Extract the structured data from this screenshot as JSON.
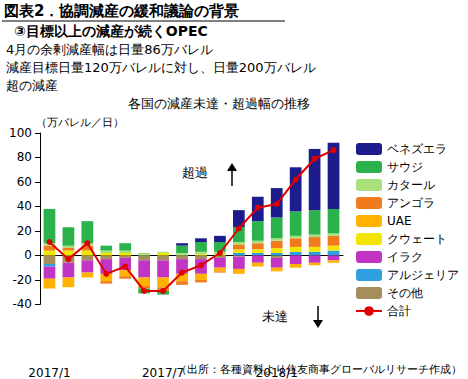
{
  "chart_data": {
    "type": "bar",
    "title": "図表2．協調減産の緩和議論の背景",
    "subtitle": "③目標以上の減産が続くOPEC",
    "description": [
      "4月の余剰減産幅は日量86万バレル",
      "減産目標日量120万バレルに対し、日量200万バレル",
      "超の減産"
    ],
    "chart_title": "各国の減産未達・超過幅の推移",
    "ylabel": "（万バレル／日）",
    "annotations": [
      {
        "text": "超過"
      },
      {
        "text": "未達"
      }
    ],
    "source": "（出所：各種資料より住友商事グローバルリサーチ作成）",
    "categories": [
      "2017/1",
      null,
      null,
      null,
      null,
      null,
      "2017/7",
      null,
      null,
      null,
      null,
      null,
      "2018/1",
      null,
      null,
      null
    ],
    "stacked": true,
    "grid": false,
    "legend": "right",
    "ylim": [
      -40,
      100
    ],
    "yticks": [
      -40,
      -20,
      0,
      20,
      40,
      60,
      80,
      100
    ],
    "series": [
      {
        "name": "ベネズエラ",
        "color": "#1c1c8c",
        "values": [
          0,
          0,
          0,
          0,
          0,
          0,
          0,
          2,
          3,
          5,
          14,
          20,
          24,
          36,
          50,
          54
        ]
      },
      {
        "name": "サウジ",
        "color": "#2bb24c",
        "values": [
          28,
          15,
          18,
          4,
          6,
          -4,
          -3,
          6,
          8,
          8,
          12,
          16,
          17,
          20,
          20,
          20
        ]
      },
      {
        "name": "カタール",
        "color": "#a8e07c",
        "values": [
          2,
          2,
          2,
          2,
          2,
          2,
          1,
          2,
          2,
          2,
          2,
          2,
          2,
          2,
          2,
          2
        ]
      },
      {
        "name": "アンゴラ",
        "color": "#f07a1e",
        "values": [
          4,
          2,
          4,
          -2,
          -2,
          -2,
          -3,
          -3,
          -2,
          -1,
          4,
          5,
          6,
          7,
          8,
          8
        ]
      },
      {
        "name": "UAE",
        "color": "#ffb300",
        "values": [
          -8,
          -8,
          -4,
          -6,
          -5,
          -7,
          -8,
          -6,
          -5,
          -3,
          -4,
          -3,
          -3,
          -3,
          -2,
          -2
        ]
      },
      {
        "name": "クウェート",
        "color": "#f2e600",
        "values": [
          4,
          4,
          4,
          2,
          2,
          0,
          2,
          0,
          1,
          1,
          3,
          3,
          4,
          4,
          4,
          4
        ]
      },
      {
        "name": "イラク",
        "color": "#c234c4",
        "values": [
          -10,
          -12,
          -10,
          -12,
          -10,
          -14,
          -14,
          -12,
          -12,
          -8,
          -10,
          -6,
          -8,
          -7,
          -6,
          -4
        ]
      },
      {
        "name": "アルジェリア",
        "color": "#2ea0e0",
        "values": [
          -2,
          0,
          0,
          0,
          0,
          0,
          0,
          0,
          0,
          0,
          2,
          2,
          2,
          3,
          3,
          4
        ]
      },
      {
        "name": "その他",
        "color": "#a38e5c",
        "values": [
          -7,
          -6,
          -4,
          -3,
          -2,
          -4,
          -4,
          -3,
          -3,
          -2,
          -1,
          0,
          -2,
          0,
          0,
          0
        ]
      },
      {
        "name": "合計",
        "type": "line",
        "color": "#e00000",
        "marker": "circle",
        "line_style": "solid",
        "values": [
          11,
          -3,
          10,
          -15,
          -9,
          -29,
          -29,
          -14,
          -8,
          2,
          22,
          39,
          42,
          62,
          79,
          86
        ]
      }
    ]
  }
}
